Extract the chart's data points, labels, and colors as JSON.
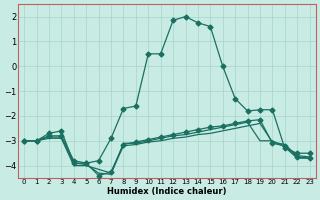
{
  "xlabel": "Humidex (Indice chaleur)",
  "xlim": [
    -0.5,
    23.5
  ],
  "ylim": [
    -4.5,
    2.5
  ],
  "yticks": [
    -4,
    -3,
    -2,
    -1,
    0,
    1,
    2
  ],
  "xticks": [
    0,
    1,
    2,
    3,
    4,
    5,
    6,
    7,
    8,
    9,
    10,
    11,
    12,
    13,
    14,
    15,
    16,
    17,
    18,
    19,
    20,
    21,
    22,
    23
  ],
  "bg_color": "#c8ebe4",
  "grid_color": "#a8d4cc",
  "line_color": "#1a7060",
  "border_color": "#c06060",
  "lines": [
    {
      "x": [
        0,
        1,
        2,
        3,
        4,
        5,
        6,
        7,
        8,
        9,
        10,
        11,
        12,
        13,
        14,
        15,
        16,
        17,
        18,
        19,
        20,
        21,
        22,
        23
      ],
      "y": [
        -3,
        -3,
        -2.7,
        -2.6,
        -3.9,
        -3.9,
        -3.8,
        -2.9,
        -1.7,
        -1.6,
        0.5,
        0.5,
        1.85,
        2.0,
        1.75,
        1.6,
        0.0,
        -1.3,
        -1.8,
        -1.75,
        -1.75,
        -3.3,
        -3.5,
        -3.5
      ],
      "marker": true
    },
    {
      "x": [
        0,
        1,
        2,
        3,
        4,
        5,
        6,
        7,
        8,
        9,
        10,
        11,
        12,
        13,
        14,
        15,
        16,
        17,
        18,
        19,
        20,
        21,
        22,
        23
      ],
      "y": [
        -3,
        -3,
        -2.8,
        -2.8,
        -3.8,
        -3.9,
        -4.4,
        -4.25,
        -3.15,
        -3.05,
        -2.95,
        -2.85,
        -2.75,
        -2.65,
        -2.55,
        -2.45,
        -2.4,
        -2.3,
        -2.2,
        -2.15,
        -3.1,
        -3.2,
        -3.65,
        -3.7
      ],
      "marker": true
    },
    {
      "x": [
        0,
        1,
        2,
        3,
        4,
        5,
        6,
        7,
        8,
        9,
        10,
        11,
        12,
        13,
        14,
        15,
        16,
        17,
        18,
        19,
        20,
        21,
        22,
        23
      ],
      "y": [
        -3,
        -3,
        -2.9,
        -2.9,
        -4.0,
        -4.0,
        -4.15,
        -4.3,
        -3.2,
        -3.15,
        -3.05,
        -3.0,
        -2.9,
        -2.85,
        -2.75,
        -2.7,
        -2.6,
        -2.5,
        -2.4,
        -2.3,
        -3.05,
        -3.15,
        -3.6,
        -3.65
      ],
      "marker": false
    },
    {
      "x": [
        0,
        1,
        2,
        3,
        4,
        5,
        6,
        7,
        8,
        9,
        10,
        11,
        12,
        13,
        14,
        15,
        16,
        17,
        18,
        19,
        20,
        21,
        22,
        23
      ],
      "y": [
        -3,
        -3,
        -2.85,
        -2.85,
        -3.9,
        -3.95,
        -4.3,
        -4.35,
        -3.1,
        -3.1,
        -3.0,
        -2.9,
        -2.8,
        -2.75,
        -2.65,
        -2.55,
        -2.45,
        -2.35,
        -2.25,
        -3.0,
        -3.0,
        -3.25,
        -3.7,
        -3.7
      ],
      "marker": false
    }
  ]
}
